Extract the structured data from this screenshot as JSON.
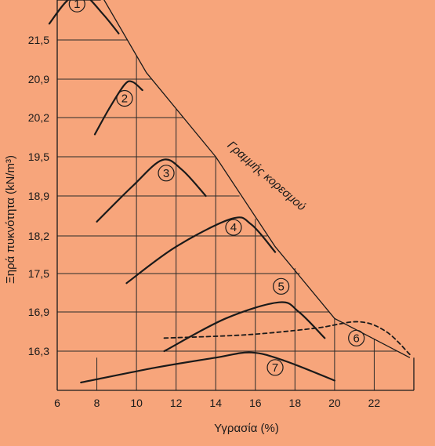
{
  "chart_data": {
    "type": "line",
    "title": "",
    "xlabel": "Υγρασία (%)",
    "ylabel": "Ξηρά πυκνότητα (kN/m³)",
    "xlim": [
      6,
      24
    ],
    "ylim": [
      15.7,
      22.2
    ],
    "xticks": [
      6,
      8,
      10,
      12,
      14,
      16,
      18,
      20,
      22
    ],
    "yticks": [
      16.3,
      16.9,
      17.5,
      18.2,
      18.9,
      19.5,
      20.2,
      20.9,
      21.5
    ],
    "ytick_labels": [
      "16,3",
      "16,9",
      "17,5",
      "18,2",
      "18,9",
      "19,5",
      "20,2",
      "20,9",
      "21,5"
    ],
    "grid": true,
    "saturation_line": {
      "label": "Γραμμής κορεσμού",
      "points": [
        [
          8.2,
          22.2
        ],
        [
          10.5,
          21.0
        ],
        [
          14.0,
          19.5
        ],
        [
          17.0,
          18.0
        ],
        [
          20.0,
          16.8
        ],
        [
          23.8,
          16.2
        ]
      ]
    },
    "series": [
      {
        "name": "1",
        "style": "solid",
        "points": [
          [
            5.6,
            21.75
          ],
          [
            6.5,
            22.1
          ],
          [
            7.3,
            22.2
          ],
          [
            8.3,
            21.9
          ],
          [
            9.1,
            21.6
          ]
        ]
      },
      {
        "name": "2",
        "style": "solid",
        "points": [
          [
            7.9,
            19.9
          ],
          [
            8.6,
            20.35
          ],
          [
            9.4,
            20.8
          ],
          [
            9.8,
            20.85
          ],
          [
            10.3,
            20.7
          ]
        ]
      },
      {
        "name": "3",
        "style": "solid",
        "points": [
          [
            8.0,
            18.45
          ],
          [
            9.8,
            19.05
          ],
          [
            11.3,
            19.45
          ],
          [
            12.3,
            19.3
          ],
          [
            13.5,
            18.9
          ]
        ]
      },
      {
        "name": "4",
        "style": "solid",
        "points": [
          [
            9.5,
            17.35
          ],
          [
            12.0,
            18.0
          ],
          [
            14.8,
            18.5
          ],
          [
            15.8,
            18.4
          ],
          [
            17.0,
            17.9
          ]
        ]
      },
      {
        "name": "5",
        "style": "solid",
        "points": [
          [
            11.4,
            16.3
          ],
          [
            14.5,
            16.8
          ],
          [
            17.2,
            17.05
          ],
          [
            18.2,
            16.9
          ],
          [
            19.5,
            16.5
          ]
        ]
      },
      {
        "name": "6",
        "style": "dashed",
        "points": [
          [
            11.4,
            16.5
          ],
          [
            15.5,
            16.55
          ],
          [
            19.0,
            16.65
          ],
          [
            21.2,
            16.75
          ],
          [
            22.6,
            16.6
          ],
          [
            23.8,
            16.25
          ]
        ]
      },
      {
        "name": "7",
        "style": "solid",
        "points": [
          [
            7.2,
            15.82
          ],
          [
            11.0,
            16.05
          ],
          [
            14.0,
            16.2
          ],
          [
            15.8,
            16.28
          ],
          [
            17.5,
            16.15
          ],
          [
            20.0,
            15.85
          ]
        ]
      }
    ],
    "marker_labels": [
      {
        "text": "1",
        "x": 7.0,
        "y": 22.05
      },
      {
        "text": "2",
        "x": 9.4,
        "y": 20.55
      },
      {
        "text": "3",
        "x": 11.5,
        "y": 19.25
      },
      {
        "text": "4",
        "x": 14.9,
        "y": 18.35
      },
      {
        "text": "5",
        "x": 17.3,
        "y": 17.3
      },
      {
        "text": "6",
        "x": 21.1,
        "y": 16.5
      },
      {
        "text": "7",
        "x": 17.0,
        "y": 16.05
      }
    ]
  }
}
